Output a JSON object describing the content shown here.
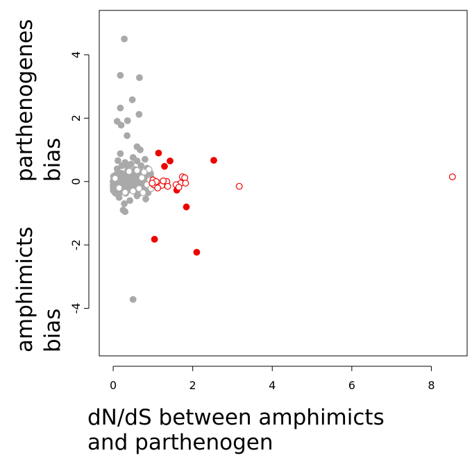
{
  "chart_data": {
    "type": "scatter",
    "xlabel": [
      "dN/dS between amphimicts",
      "and parthenogen"
    ],
    "ylabel_top": [
      "parthenogenes",
      "bias"
    ],
    "ylabel_bottom": [
      "amphimicts",
      "bias"
    ],
    "xlim": [
      -0.35,
      8.9
    ],
    "ylim": [
      -5.5,
      5.4
    ],
    "x_ticks": [
      0,
      2,
      4,
      6,
      8
    ],
    "x_tick_labels": [
      "0",
      "2",
      "4",
      "6",
      "8"
    ],
    "y_ticks": [
      -4,
      -2,
      0,
      2,
      4
    ],
    "y_tick_labels": [
      "-4",
      "-2",
      "0",
      "2",
      "4"
    ],
    "grid": false,
    "colors": {
      "background_points": "#a9a9a9",
      "highlight": "#ee0000",
      "axis": "#000000"
    },
    "series": [
      {
        "style": "gray-filled",
        "points": [
          [
            0.28,
            4.5
          ],
          [
            0.18,
            3.35
          ],
          [
            0.66,
            3.28
          ],
          [
            0.48,
            2.58
          ],
          [
            0.18,
            2.32
          ],
          [
            0.65,
            2.12
          ],
          [
            0.1,
            1.9
          ],
          [
            0.2,
            1.78
          ],
          [
            0.36,
            1.92
          ],
          [
            0.35,
            1.45
          ],
          [
            0.6,
            1.1
          ],
          [
            0.68,
            1.0
          ],
          [
            0.18,
            0.88
          ],
          [
            0.5,
            0.76
          ],
          [
            0.8,
            0.7
          ],
          [
            0.6,
            0.65
          ],
          [
            0.3,
            0.6
          ],
          [
            0.12,
            0.66
          ],
          [
            0.45,
            0.55
          ],
          [
            0.7,
            0.5
          ],
          [
            0.22,
            0.5
          ],
          [
            0.85,
            0.42
          ],
          [
            0.38,
            0.45
          ],
          [
            0.1,
            0.4
          ],
          [
            0.55,
            0.38
          ],
          [
            0.28,
            -0.7
          ],
          [
            0.3,
            -0.95
          ],
          [
            0.25,
            -0.9
          ],
          [
            0.82,
            -0.55
          ],
          [
            0.42,
            -0.6
          ],
          [
            0.15,
            -0.5
          ],
          [
            0.6,
            -0.45
          ],
          [
            0.5,
            -3.72
          ]
        ],
        "cluster": {
          "x_range": [
            0.0,
            0.95
          ],
          "y_range": [
            -0.42,
            0.38
          ],
          "count": 260
        }
      },
      {
        "style": "gray-open",
        "points": [
          [
            0.9,
            0.38
          ],
          [
            0.78,
            0.3
          ],
          [
            0.6,
            0.35
          ],
          [
            0.72,
            0.12
          ],
          [
            0.92,
            0.05
          ],
          [
            0.85,
            -0.1
          ],
          [
            0.65,
            -0.22
          ],
          [
            0.5,
            -0.3
          ],
          [
            0.3,
            -0.34
          ],
          [
            0.15,
            -0.2
          ],
          [
            0.05,
            0.1
          ],
          [
            0.4,
            0.32
          ],
          [
            0.95,
            -0.22
          ],
          [
            0.75,
            -0.35
          ]
        ]
      },
      {
        "style": "red-filled",
        "points": [
          [
            1.14,
            0.9
          ],
          [
            1.43,
            0.65
          ],
          [
            1.29,
            0.48
          ],
          [
            2.53,
            0.67
          ],
          [
            1.6,
            -0.27
          ],
          [
            1.84,
            -0.8
          ],
          [
            1.04,
            -1.82
          ],
          [
            2.1,
            -2.23
          ]
        ]
      },
      {
        "style": "red-open",
        "points": [
          [
            8.53,
            0.15
          ],
          [
            3.17,
            -0.15
          ],
          [
            1.74,
            0.15
          ],
          [
            1.8,
            0.12
          ],
          [
            1.7,
            -0.05
          ],
          [
            1.82,
            -0.05
          ],
          [
            1.35,
            0.0
          ],
          [
            1.37,
            -0.15
          ],
          [
            1.18,
            -0.05
          ],
          [
            1.22,
            -0.12
          ],
          [
            1.0,
            0.05
          ],
          [
            1.02,
            -0.1
          ],
          [
            1.58,
            -0.1
          ],
          [
            1.08,
            0.0
          ],
          [
            1.12,
            -0.2
          ],
          [
            1.26,
            0.02
          ],
          [
            1.65,
            -0.18
          ],
          [
            0.98,
            -0.05
          ]
        ]
      }
    ]
  }
}
